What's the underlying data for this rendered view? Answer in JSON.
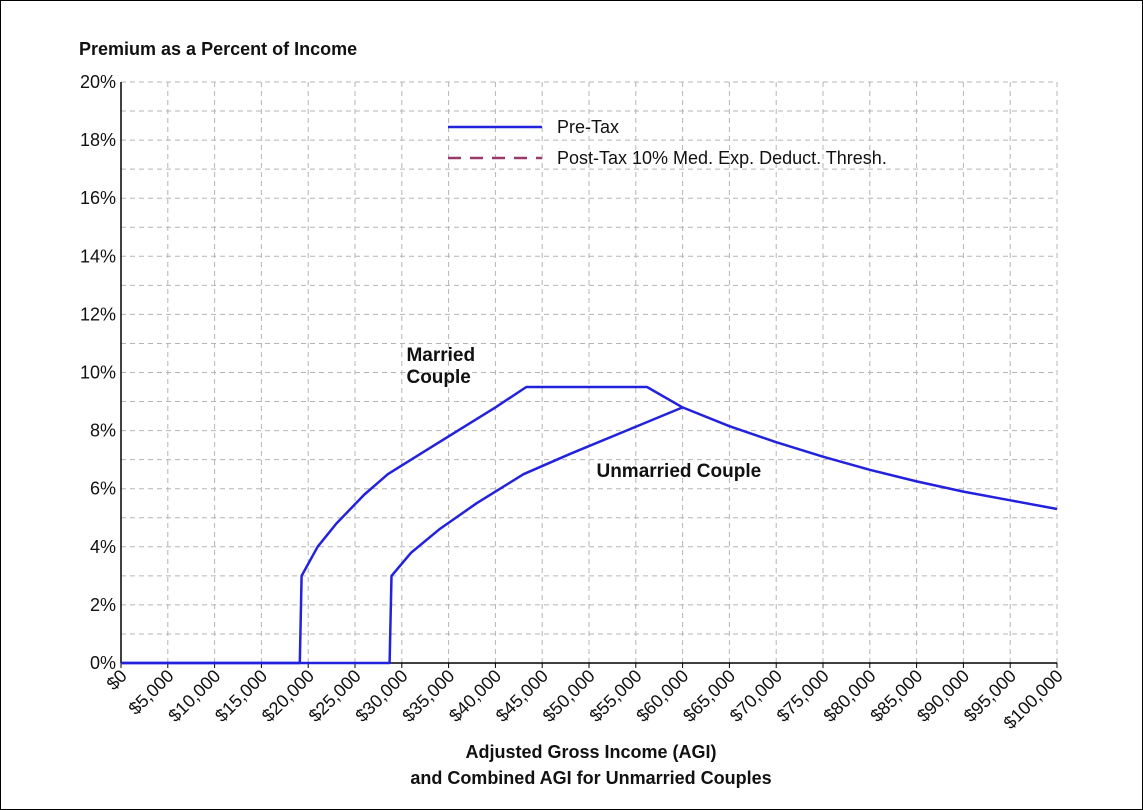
{
  "chart_data": {
    "type": "line",
    "title": "Premium as a Percent of Income",
    "xlabel_line1": "Adjusted Gross Income (AGI)",
    "xlabel_line2": "and Combined AGI for Unmarried Couples",
    "ylabel": "",
    "xlim": [
      0,
      100000
    ],
    "ylim": [
      0,
      20
    ],
    "grid": true,
    "legend_position": "top-center",
    "x_ticks": [
      0,
      5000,
      10000,
      15000,
      20000,
      25000,
      30000,
      35000,
      40000,
      45000,
      50000,
      55000,
      60000,
      65000,
      70000,
      75000,
      80000,
      85000,
      90000,
      95000,
      100000
    ],
    "x_tick_labels": [
      "$0",
      "$5,000",
      "$10,000",
      "$15,000",
      "$20,000",
      "$25,000",
      "$30,000",
      "$35,000",
      "$40,000",
      "$45,000",
      "$50,000",
      "$55,000",
      "$60,000",
      "$65,000",
      "$70,000",
      "$75,000",
      "$80,000",
      "$85,000",
      "$90,000",
      "$95,000",
      "$100,000"
    ],
    "y_ticks": [
      0,
      2,
      4,
      6,
      8,
      10,
      12,
      14,
      16,
      18,
      20
    ],
    "y_tick_labels": [
      "0%",
      "2%",
      "4%",
      "6%",
      "8%",
      "10%",
      "12%",
      "14%",
      "16%",
      "18%",
      "20%"
    ],
    "series": [
      {
        "name": "Pre-Tax",
        "style": "solid",
        "color": "#2222dd",
        "curves": [
          {
            "x": [
              0,
              19100,
              19300,
              21000,
              23000,
              26000,
              28500,
              32000,
              36000,
              40000,
              43300,
              47000,
              52000,
              55000,
              56200,
              60000,
              65000,
              70000,
              75000,
              80000,
              85000,
              90000,
              95000,
              100000
            ],
            "y": [
              0,
              0,
              3.0,
              4.0,
              4.8,
              5.8,
              6.5,
              7.2,
              8.0,
              8.8,
              9.5,
              9.5,
              9.5,
              9.5,
              9.5,
              8.8,
              8.15,
              7.6,
              7.1,
              6.65,
              6.25,
              5.9,
              5.6,
              5.3
            ]
          },
          {
            "x": [
              0,
              28700,
              28900,
              31000,
              34000,
              38000,
              43000,
              48000,
              54000,
              60000
            ],
            "y": [
              0,
              0,
              3.0,
              3.8,
              4.6,
              5.5,
              6.5,
              7.2,
              8.0,
              8.8
            ]
          }
        ]
      },
      {
        "name": "Post-Tax 10% Med. Exp. Deduct. Thresh.",
        "style": "dashed",
        "color": "#9b3a6a",
        "curves": []
      }
    ],
    "annotations": [
      {
        "lines": [
          "Married",
          "Couple"
        ],
        "x": 30500,
        "y": 10.4
      },
      {
        "lines": [
          "Unmarried Couple"
        ],
        "x": 50800,
        "y": 6.4
      }
    ],
    "colors": {
      "pre_tax": "#2222dd",
      "post_tax": "#9b3a6a",
      "grid": "#b5b5b5",
      "axis": "#000000"
    }
  }
}
